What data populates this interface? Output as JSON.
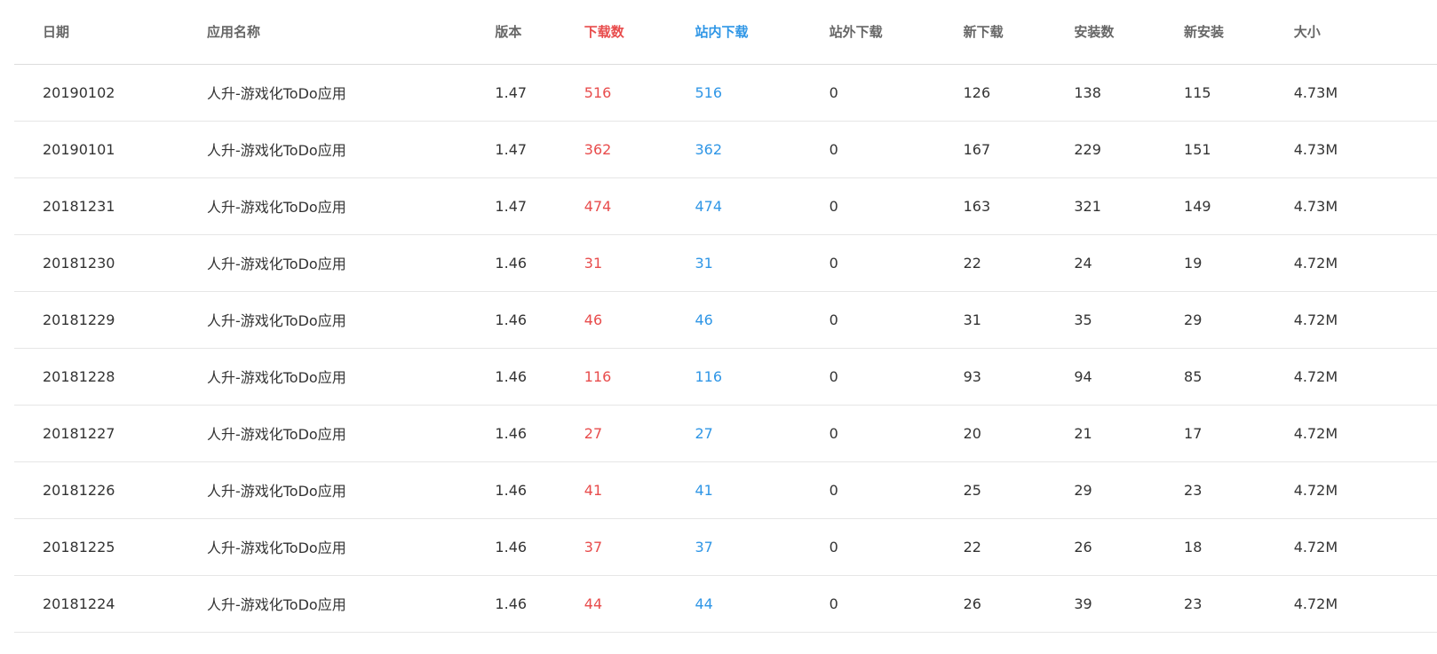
{
  "colors": {
    "downloads": "#e84c4c",
    "onsite_downloads": "#2f96e6",
    "header_text": "#666666",
    "body_text": "#333333",
    "row_divider": "#e6e6e6"
  },
  "table": {
    "headers": {
      "date": "日期",
      "app_name": "应用名称",
      "version": "版本",
      "downloads": "下载数",
      "onsite_downloads": "站内下载",
      "offsite_downloads": "站外下载",
      "new_downloads": "新下载",
      "installs": "安装数",
      "new_installs": "新安装",
      "size": "大小"
    },
    "rows": [
      {
        "date": "20190102",
        "app_name": "人升-游戏化ToDo应用",
        "version": "1.47",
        "downloads": "516",
        "onsite_downloads": "516",
        "offsite_downloads": "0",
        "new_downloads": "126",
        "installs": "138",
        "new_installs": "115",
        "size": "4.73M"
      },
      {
        "date": "20190101",
        "app_name": "人升-游戏化ToDo应用",
        "version": "1.47",
        "downloads": "362",
        "onsite_downloads": "362",
        "offsite_downloads": "0",
        "new_downloads": "167",
        "installs": "229",
        "new_installs": "151",
        "size": "4.73M"
      },
      {
        "date": "20181231",
        "app_name": "人升-游戏化ToDo应用",
        "version": "1.47",
        "downloads": "474",
        "onsite_downloads": "474",
        "offsite_downloads": "0",
        "new_downloads": "163",
        "installs": "321",
        "new_installs": "149",
        "size": "4.73M"
      },
      {
        "date": "20181230",
        "app_name": "人升-游戏化ToDo应用",
        "version": "1.46",
        "downloads": "31",
        "onsite_downloads": "31",
        "offsite_downloads": "0",
        "new_downloads": "22",
        "installs": "24",
        "new_installs": "19",
        "size": "4.72M"
      },
      {
        "date": "20181229",
        "app_name": "人升-游戏化ToDo应用",
        "version": "1.46",
        "downloads": "46",
        "onsite_downloads": "46",
        "offsite_downloads": "0",
        "new_downloads": "31",
        "installs": "35",
        "new_installs": "29",
        "size": "4.72M"
      },
      {
        "date": "20181228",
        "app_name": "人升-游戏化ToDo应用",
        "version": "1.46",
        "downloads": "116",
        "onsite_downloads": "116",
        "offsite_downloads": "0",
        "new_downloads": "93",
        "installs": "94",
        "new_installs": "85",
        "size": "4.72M"
      },
      {
        "date": "20181227",
        "app_name": "人升-游戏化ToDo应用",
        "version": "1.46",
        "downloads": "27",
        "onsite_downloads": "27",
        "offsite_downloads": "0",
        "new_downloads": "20",
        "installs": "21",
        "new_installs": "17",
        "size": "4.72M"
      },
      {
        "date": "20181226",
        "app_name": "人升-游戏化ToDo应用",
        "version": "1.46",
        "downloads": "41",
        "onsite_downloads": "41",
        "offsite_downloads": "0",
        "new_downloads": "25",
        "installs": "29",
        "new_installs": "23",
        "size": "4.72M"
      },
      {
        "date": "20181225",
        "app_name": "人升-游戏化ToDo应用",
        "version": "1.46",
        "downloads": "37",
        "onsite_downloads": "37",
        "offsite_downloads": "0",
        "new_downloads": "22",
        "installs": "26",
        "new_installs": "18",
        "size": "4.72M"
      },
      {
        "date": "20181224",
        "app_name": "人升-游戏化ToDo应用",
        "version": "1.46",
        "downloads": "44",
        "onsite_downloads": "44",
        "offsite_downloads": "0",
        "new_downloads": "26",
        "installs": "39",
        "new_installs": "23",
        "size": "4.72M"
      }
    ]
  }
}
